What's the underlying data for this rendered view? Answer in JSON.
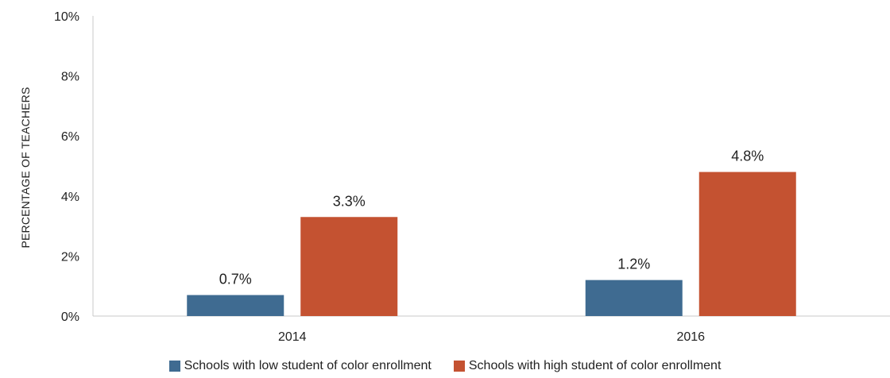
{
  "chart_data": {
    "type": "bar",
    "title": "",
    "ylabel": "PERCENTAGE OF TEACHERS",
    "xlabel": "",
    "categories": [
      "2014",
      "2016"
    ],
    "ylim": [
      0,
      10
    ],
    "yticks": [
      0,
      2,
      4,
      6,
      8,
      10
    ],
    "ytick_labels": [
      "0%",
      "2%",
      "4%",
      "6%",
      "8%",
      "10%"
    ],
    "legend_position": "bottom",
    "series": [
      {
        "name": "Schools with low student of color enrollment",
        "color": "#3f6b91",
        "values": [
          0.7,
          1.2
        ],
        "labels": [
          "0.7%",
          "1.2%"
        ]
      },
      {
        "name": "Schools with high student of color enrollment",
        "color": "#c45231",
        "values": [
          3.3,
          4.8
        ],
        "labels": [
          "3.3%",
          "4.8%"
        ]
      }
    ]
  }
}
